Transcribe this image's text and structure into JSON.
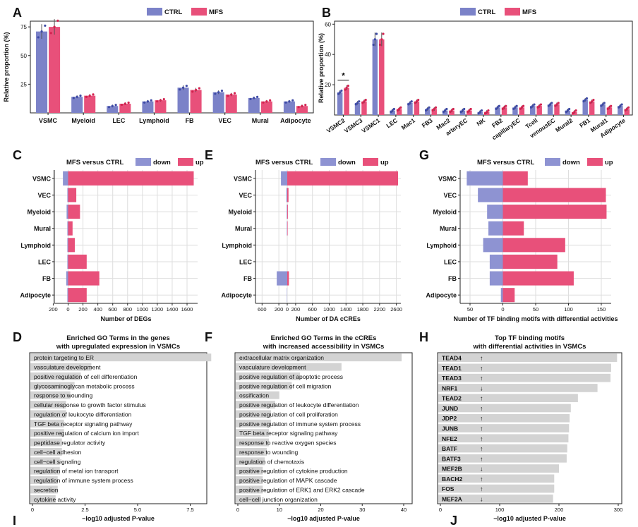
{
  "colors": {
    "ctrl": "#7b82c8",
    "mfs": "#e8507a",
    "down": "#8e93d2",
    "up": "#e8507a",
    "go_bar": "#d3d3d3",
    "grid": "#dedede"
  },
  "legend": {
    "ctrl": "CTRL",
    "mfs": "MFS",
    "down": "down",
    "up": "up"
  },
  "chart_data": [
    {
      "panel": "A",
      "type": "bar",
      "ylabel": "Relative proportion (%)",
      "yticks": [
        25,
        50,
        75
      ],
      "categories": [
        "VSMC",
        "Myeloid",
        "LEC",
        "Lymphoid",
        "FB",
        "VEC",
        "Mural",
        "Adipocyte"
      ],
      "series": [
        {
          "name": "CTRL",
          "values": [
            71,
            14,
            6,
            10,
            22,
            18,
            13,
            10
          ]
        },
        {
          "name": "MFS",
          "values": [
            75,
            15,
            8,
            11,
            20,
            16,
            10,
            6
          ]
        }
      ],
      "annotations": []
    },
    {
      "panel": "B",
      "type": "bar",
      "ylabel": "Relative proportion (%)",
      "yticks": [
        20,
        40,
        60
      ],
      "categories": [
        "VSMC2",
        "VSMC3",
        "VSMC1",
        "LEC",
        "Mac1",
        "FB3",
        "Mac2",
        "arteryEC",
        "NK",
        "FB2",
        "capillaryEC",
        "Tcell",
        "venousEC",
        "Mural2",
        "FB1",
        "Mural1",
        "Adipocyte"
      ],
      "series": [
        {
          "name": "CTRL",
          "values": [
            15,
            8,
            50,
            3,
            8,
            4,
            3,
            3,
            2,
            5,
            5,
            6,
            7,
            3,
            10,
            7,
            6
          ]
        },
        {
          "name": "MFS",
          "values": [
            18,
            9,
            50,
            4,
            9,
            4,
            3,
            3,
            2,
            5,
            5,
            6,
            7,
            2,
            9,
            5,
            4
          ]
        }
      ],
      "annotations": [
        "*"
      ]
    },
    {
      "panel": "C",
      "type": "bar",
      "orientation": "horizontal",
      "title": "MFS versus CTRL",
      "xlabel": "Number of DEGs",
      "xticks": [
        "200",
        "0",
        "200",
        "400",
        "600",
        "800",
        "1000",
        "1200",
        "1400",
        "1600"
      ],
      "categories": [
        "VSMC",
        "VEC",
        "Myeloid",
        "Mural",
        "Lymphoid",
        "LEC",
        "FB",
        "Adipocyte"
      ],
      "series": [
        {
          "name": "down",
          "values": [
            -70,
            -10,
            -20,
            -10,
            -10,
            -10,
            -25,
            -10
          ]
        },
        {
          "name": "up",
          "values": [
            1690,
            110,
            160,
            60,
            90,
            250,
            420,
            250
          ]
        }
      ]
    },
    {
      "panel": "E",
      "type": "bar",
      "orientation": "horizontal",
      "title": "MFS versus CTRL",
      "xlabel": "Number of DA cCREs",
      "xticks": [
        "600",
        "200",
        "0",
        "200",
        "600",
        "1000",
        "1400",
        "1800",
        "2200",
        "2600"
      ],
      "categories": [
        "VSMC",
        "VEC",
        "Myeloid",
        "Mural",
        "Lymphoid",
        "LEC",
        "FB",
        "Adipocyte"
      ],
      "series": [
        {
          "name": "down",
          "values": [
            -150,
            -20,
            -12,
            -10,
            0,
            0,
            -250,
            -8
          ]
        },
        {
          "name": "up",
          "values": [
            2640,
            30,
            15,
            10,
            0,
            0,
            40,
            0
          ]
        }
      ]
    },
    {
      "panel": "G",
      "type": "bar",
      "orientation": "horizontal",
      "title": "MFS versus CTRL",
      "xlabel": "Number of TF binding motifs with differential activities",
      "xticks": [
        "50",
        "0",
        "50",
        "100",
        "150"
      ],
      "categories": [
        "VSMC",
        "VEC",
        "Myeloid",
        "Mural",
        "Lymphoid",
        "LEC",
        "FB",
        "Adipocyte"
      ],
      "series": [
        {
          "name": "down",
          "values": [
            -55,
            -38,
            -24,
            -22,
            -30,
            -20,
            -20,
            -3
          ]
        },
        {
          "name": "up",
          "values": [
            38,
            157,
            158,
            32,
            95,
            83,
            108,
            18
          ]
        }
      ]
    },
    {
      "panel": "D",
      "type": "bar",
      "orientation": "horizontal",
      "title": [
        "Enriched GO Terms in the genes",
        "with upregulated expression in VSMCs"
      ],
      "xlabel": "−log10 adjusted P-value",
      "xticks": [
        "0",
        "2.5",
        "5.0",
        "7.5"
      ],
      "categories": [
        "protein targeting to ER",
        "vasculature development",
        "positive regulation of cell differentiation",
        "glycosaminoglycan metabolic process",
        "response to wounding",
        "cellular response to growth factor stimulus",
        "regulation of leukocyte differentiation",
        "TGF beta receptor signaling pathway",
        "positive regulation of calcium ion import",
        "peptidase regulator activity",
        "cell−cell adhesion",
        "cell−cell signaling",
        "regulation of metal ion transport",
        "regulation of immune system process",
        "secretion",
        "cytokine activity"
      ],
      "values": [
        8.5,
        2.8,
        2.3,
        2.0,
        1.8,
        1.6,
        1.6,
        1.5,
        1.5,
        1.4,
        1.4,
        1.3,
        1.3,
        1.2,
        1.2,
        1.1
      ]
    },
    {
      "panel": "F",
      "type": "bar",
      "orientation": "horizontal",
      "title": [
        "Enriched GO Terms in the cCREs",
        "with increased accessibility in VSMCs"
      ],
      "xlabel": "−log10 adjusted P-value",
      "xticks": [
        "0",
        "10",
        "20",
        "30",
        "40"
      ],
      "categories": [
        "extracellular matrix organization",
        "vasculature development",
        "positive regulation of apoptotic process",
        "positive regulation of cell migration",
        "ossification",
        "positive regulation of leukocyte differentiation",
        "positive regulation of cell proliferation",
        "positive regulation of immune system process",
        "TGF beta receptor signaling pathway",
        "response to reactive oxygen species",
        "response to wounding",
        "regulation of chemotaxis",
        "positive regulation of cytokine production",
        "positive regulation of MAPK cascade",
        "positive regulation of ERK1 and ERK2 cascade",
        "cell−cell junction organization"
      ],
      "values": [
        39.5,
        25,
        15,
        13,
        10,
        9,
        8,
        8,
        7.5,
        7.5,
        7,
        6.5,
        6,
        6,
        6,
        5.5
      ]
    },
    {
      "panel": "H",
      "type": "bar",
      "orientation": "horizontal",
      "title": [
        "Top TF binding motifs",
        "with differential activities in VSMCs"
      ],
      "xlabel": "−log10 adjusted P-value",
      "xticks": [
        "0",
        "100",
        "200",
        "300"
      ],
      "categories": [
        "TEAD4",
        "TEAD1",
        "TEAD3",
        "NRF1",
        "TEAD2",
        "JUND",
        "JDP2",
        "JUNB",
        "NFE2",
        "BATF",
        "BATF3",
        "MEF2B",
        "BACH2",
        "FOS",
        "MEF2A"
      ],
      "values": [
        298,
        288,
        287,
        265,
        232,
        220,
        218,
        217,
        216,
        214,
        213,
        200,
        192,
        192,
        190
      ],
      "directions": [
        "↑",
        "↑",
        "↑",
        "↓",
        "↑",
        "↑",
        "↑",
        "↑",
        "↑",
        "↑",
        "↑",
        "↓",
        "↑",
        "↑",
        "↓"
      ]
    }
  ],
  "panel_letters": [
    "A",
    "B",
    "C",
    "D",
    "E",
    "F",
    "G",
    "H",
    "I",
    "J"
  ]
}
